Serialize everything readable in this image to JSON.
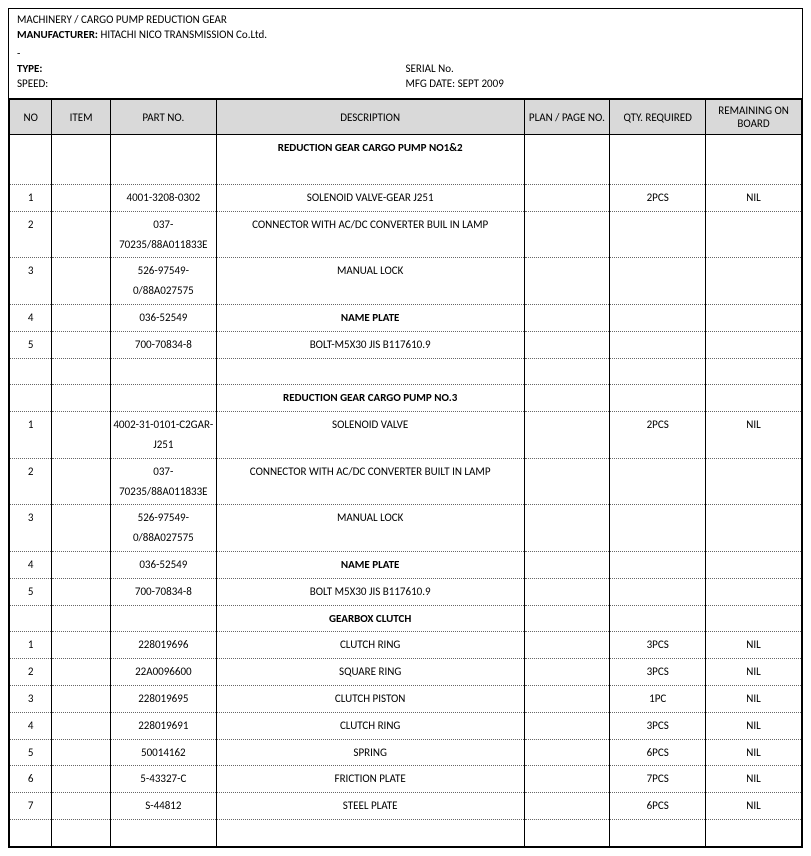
{
  "header": {
    "breadcrumb": "MACHINERY / CARGO PUMP REDUCTION GEAR",
    "manufacturer_label": "MANUFACTURER:",
    "manufacturer_value": "HITACHI NICO TRANSMISSION Co.Ltd.",
    "dash": "-",
    "type_label": "TYPE:",
    "type_value": "",
    "serial_label": "SERIAL No.",
    "serial_value": "",
    "speed_label": "SPEED:",
    "speed_value": "",
    "mfg_label": "MFG DATE:",
    "mfg_value": "SEPT 2009"
  },
  "columns": {
    "no": "NO",
    "item": "ITEM",
    "part": "PART NO.",
    "desc": "DESCRIPTION",
    "plan": "PLAN / PAGE NO.",
    "qty": "QTY. REQUIRED",
    "rem": "REMAINING ON BOARD"
  },
  "rows": [
    {
      "type": "section",
      "desc": "REDUCTION GEAR CARGO PUMP NO1&2",
      "cls": "section-head",
      "tall": true
    },
    {
      "type": "data",
      "no": "1",
      "item": "",
      "part": "4001-3208-0302",
      "desc": "SOLENOID VALVE-GEAR J251",
      "plan": "",
      "qty": "2PCS",
      "rem": "NIL"
    },
    {
      "type": "data",
      "no": "2",
      "item": "",
      "part": "037-70235/88A011833E",
      "desc": "CONNECTOR WITH AC/DC CONVERTER BUIL IN LAMP",
      "plan": "",
      "qty": "",
      "rem": ""
    },
    {
      "type": "data",
      "no": "3",
      "item": "",
      "part": "526-97549-0/88A027575",
      "desc": "MANUAL LOCK",
      "plan": "",
      "qty": "",
      "rem": ""
    },
    {
      "type": "data",
      "no": "4",
      "item": "",
      "part": "036-52549",
      "desc": "NAME PLATE",
      "desc_cls": "name-plate",
      "plan": "",
      "qty": "",
      "rem": ""
    },
    {
      "type": "data",
      "no": "5",
      "item": "",
      "part": "700-70834-8",
      "desc": "BOLT-M5X30 JIS B117610.9",
      "plan": "",
      "qty": "",
      "rem": ""
    },
    {
      "type": "blank"
    },
    {
      "type": "section",
      "desc": "REDUCTION GEAR CARGO PUMP NO.3",
      "cls": "section-head-sm"
    },
    {
      "type": "data",
      "no": "1",
      "item": "",
      "part": "4002-31-0101-C2GAR-J251",
      "desc": "SOLENOID VALVE",
      "plan": "",
      "qty": "2PCS",
      "rem": "NIL"
    },
    {
      "type": "data",
      "no": "2",
      "item": "",
      "part": "037-70235/88A011833E",
      "desc": "CONNECTOR WITH AC/DC CONVERTER BUILT IN LAMP",
      "plan": "",
      "qty": "",
      "rem": ""
    },
    {
      "type": "data",
      "no": "3",
      "item": "",
      "part": "526-97549-0/88A027575",
      "desc": "MANUAL LOCK",
      "plan": "",
      "qty": "",
      "rem": ""
    },
    {
      "type": "data",
      "no": "4",
      "item": "",
      "part": "036-52549",
      "desc": "NAME PLATE",
      "desc_cls": "name-plate",
      "plan": "",
      "qty": "",
      "rem": ""
    },
    {
      "type": "data",
      "no": "5",
      "item": "",
      "part": "700-70834-8",
      "desc": "BOLT M5X30 JIS B117610.9",
      "plan": "",
      "qty": "",
      "rem": ""
    },
    {
      "type": "section",
      "desc": "GEARBOX CLUTCH",
      "cls": "section-head-sm"
    },
    {
      "type": "data",
      "no": "1",
      "item": "",
      "part": "228019696",
      "desc": "CLUTCH RING",
      "plan": "",
      "qty": "3PCS",
      "rem": "NIL"
    },
    {
      "type": "data",
      "no": "2",
      "item": "",
      "part": "22A0096600",
      "desc": "SQUARE RING",
      "plan": "",
      "qty": "3PCS",
      "rem": "NIL"
    },
    {
      "type": "data",
      "no": "3",
      "item": "",
      "part": "228019695",
      "desc": "CLUTCH PISTON",
      "plan": "",
      "qty": "1PC",
      "rem": "NIL"
    },
    {
      "type": "data",
      "no": "4",
      "item": "",
      "part": "228019691",
      "desc": "CLUTCH RING",
      "plan": "",
      "qty": "3PCS",
      "rem": "NIL"
    },
    {
      "type": "data",
      "no": "5",
      "item": "",
      "part": "50014162",
      "desc": "SPRING",
      "plan": "",
      "qty": "6PCS",
      "rem": "NIL"
    },
    {
      "type": "data",
      "no": "6",
      "item": "",
      "part": "5-43327-C",
      "desc": "FRICTION PLATE",
      "plan": "",
      "qty": "7PCS",
      "rem": "NIL"
    },
    {
      "type": "data",
      "no": "7",
      "item": "",
      "part": "S-44812",
      "desc": "STEEL PLATE",
      "plan": "",
      "qty": "6PCS",
      "rem": "NIL"
    },
    {
      "type": "blank"
    }
  ]
}
